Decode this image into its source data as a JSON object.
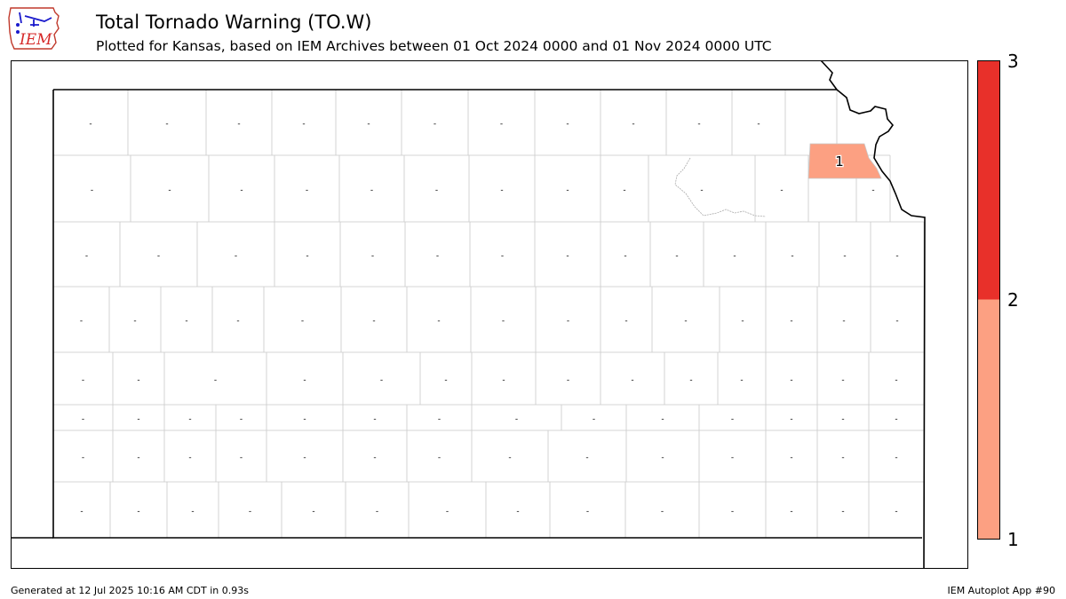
{
  "header": {
    "logo_text": "IEM",
    "title": "Total Tornado Warning (TO.W)",
    "subtitle": "Plotted for Kansas, based on IEM Archives  between 01 Oct 2024 0000 and 01 Nov 2024 0000 UTC"
  },
  "map": {
    "state": "Kansas",
    "highlighted_county": {
      "label": "1",
      "value": 1,
      "color": "#fca082"
    },
    "no_data_marker": "-",
    "border_color": "#000000",
    "county_line_color": "#c8c8c8"
  },
  "colorbar": {
    "colors": [
      "#fca082",
      "#e8302a"
    ],
    "ticks": [
      "3",
      "2",
      "1"
    ]
  },
  "footer": {
    "generated": "Generated at 12 Jul 2025 10:16 AM CDT in 0.93s",
    "app": "IEM Autoplot App #90"
  }
}
